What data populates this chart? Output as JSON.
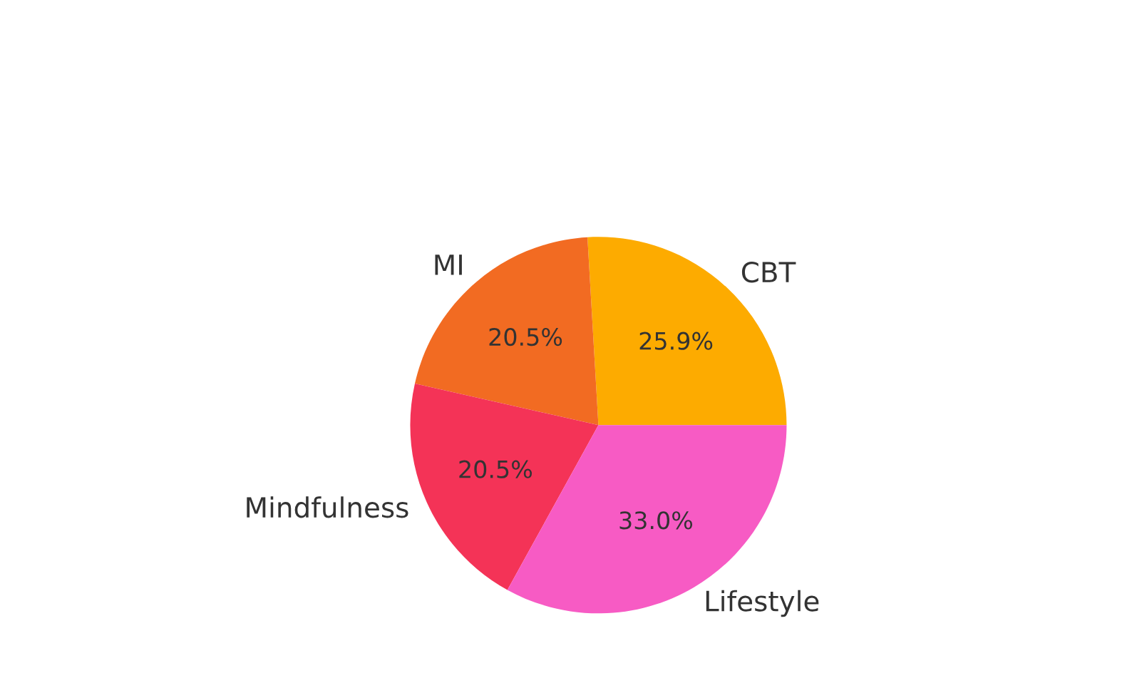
{
  "chart_data": {
    "type": "pie",
    "categories": [
      "CBT",
      "MI",
      "Mindfulness",
      "Lifestyle"
    ],
    "values": [
      25.9,
      20.5,
      20.5,
      33.0
    ],
    "value_labels": [
      "25.9%",
      "20.5%",
      "20.5%",
      "33.0%"
    ],
    "colors": [
      "#fdab00",
      "#f26b22",
      "#f43357",
      "#f75bc4"
    ],
    "legend": false
  }
}
